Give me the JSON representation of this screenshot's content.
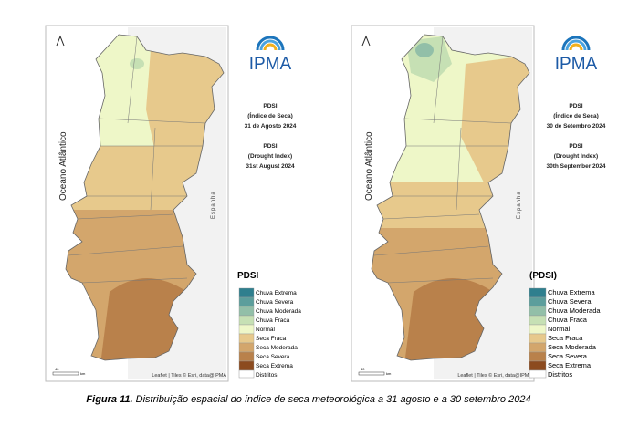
{
  "panels": [
    {
      "title": "PDSI",
      "subtitle_pt": "(Índice de Seca)",
      "date_pt": "31 de Agosto 2024",
      "title_en": "PDSI",
      "subtitle_en": "(Drought Index)",
      "date_en": "31st August 2024",
      "ocean": "Oceano Atlântico",
      "country": "Espanha",
      "logo": "IPMA",
      "legend_title": "PDSI",
      "attribution": "Leaflet | Tiles © Esri, data@IPMA",
      "scale": "40",
      "scale_unit": "km"
    },
    {
      "title": "PDSI",
      "subtitle_pt": "(Índice de Seca)",
      "date_pt": "30 de Setembro 2024",
      "title_en": "PDSI",
      "subtitle_en": "(Drought Index)",
      "date_en": "30th September 2024",
      "ocean": "Oceano Atlântico",
      "country": "Espanha",
      "logo": "IPMA",
      "legend_title": "(PDSI)",
      "attribution": "Leaflet | Tiles © Esri, data@IPMA",
      "scale": "40",
      "scale_unit": "km"
    }
  ],
  "legend": [
    {
      "label": "Chuva Extrema",
      "color": "#2f7f8e"
    },
    {
      "label": "Chuva Severa",
      "color": "#5c9e9c"
    },
    {
      "label": "Chuva Moderada",
      "color": "#92bfa8"
    },
    {
      "label": "Chuva Fraca",
      "color": "#c6e0b4"
    },
    {
      "label": "Normal",
      "color": "#eef7c8"
    },
    {
      "label": "Seca Fraca",
      "color": "#e7c98c"
    },
    {
      "label": "Seca Moderada",
      "color": "#d3a66c"
    },
    {
      "label": "Seca Severa",
      "color": "#b9814b"
    },
    {
      "label": "Seca Extrema",
      "color": "#8c4b1f"
    }
  ],
  "districts": "Distritos",
  "caption": {
    "label": "Figura 11.",
    "text": "Distribuição espacial do índice de seca meteorológica a 31 agosto e a 30 setembro 2024"
  }
}
